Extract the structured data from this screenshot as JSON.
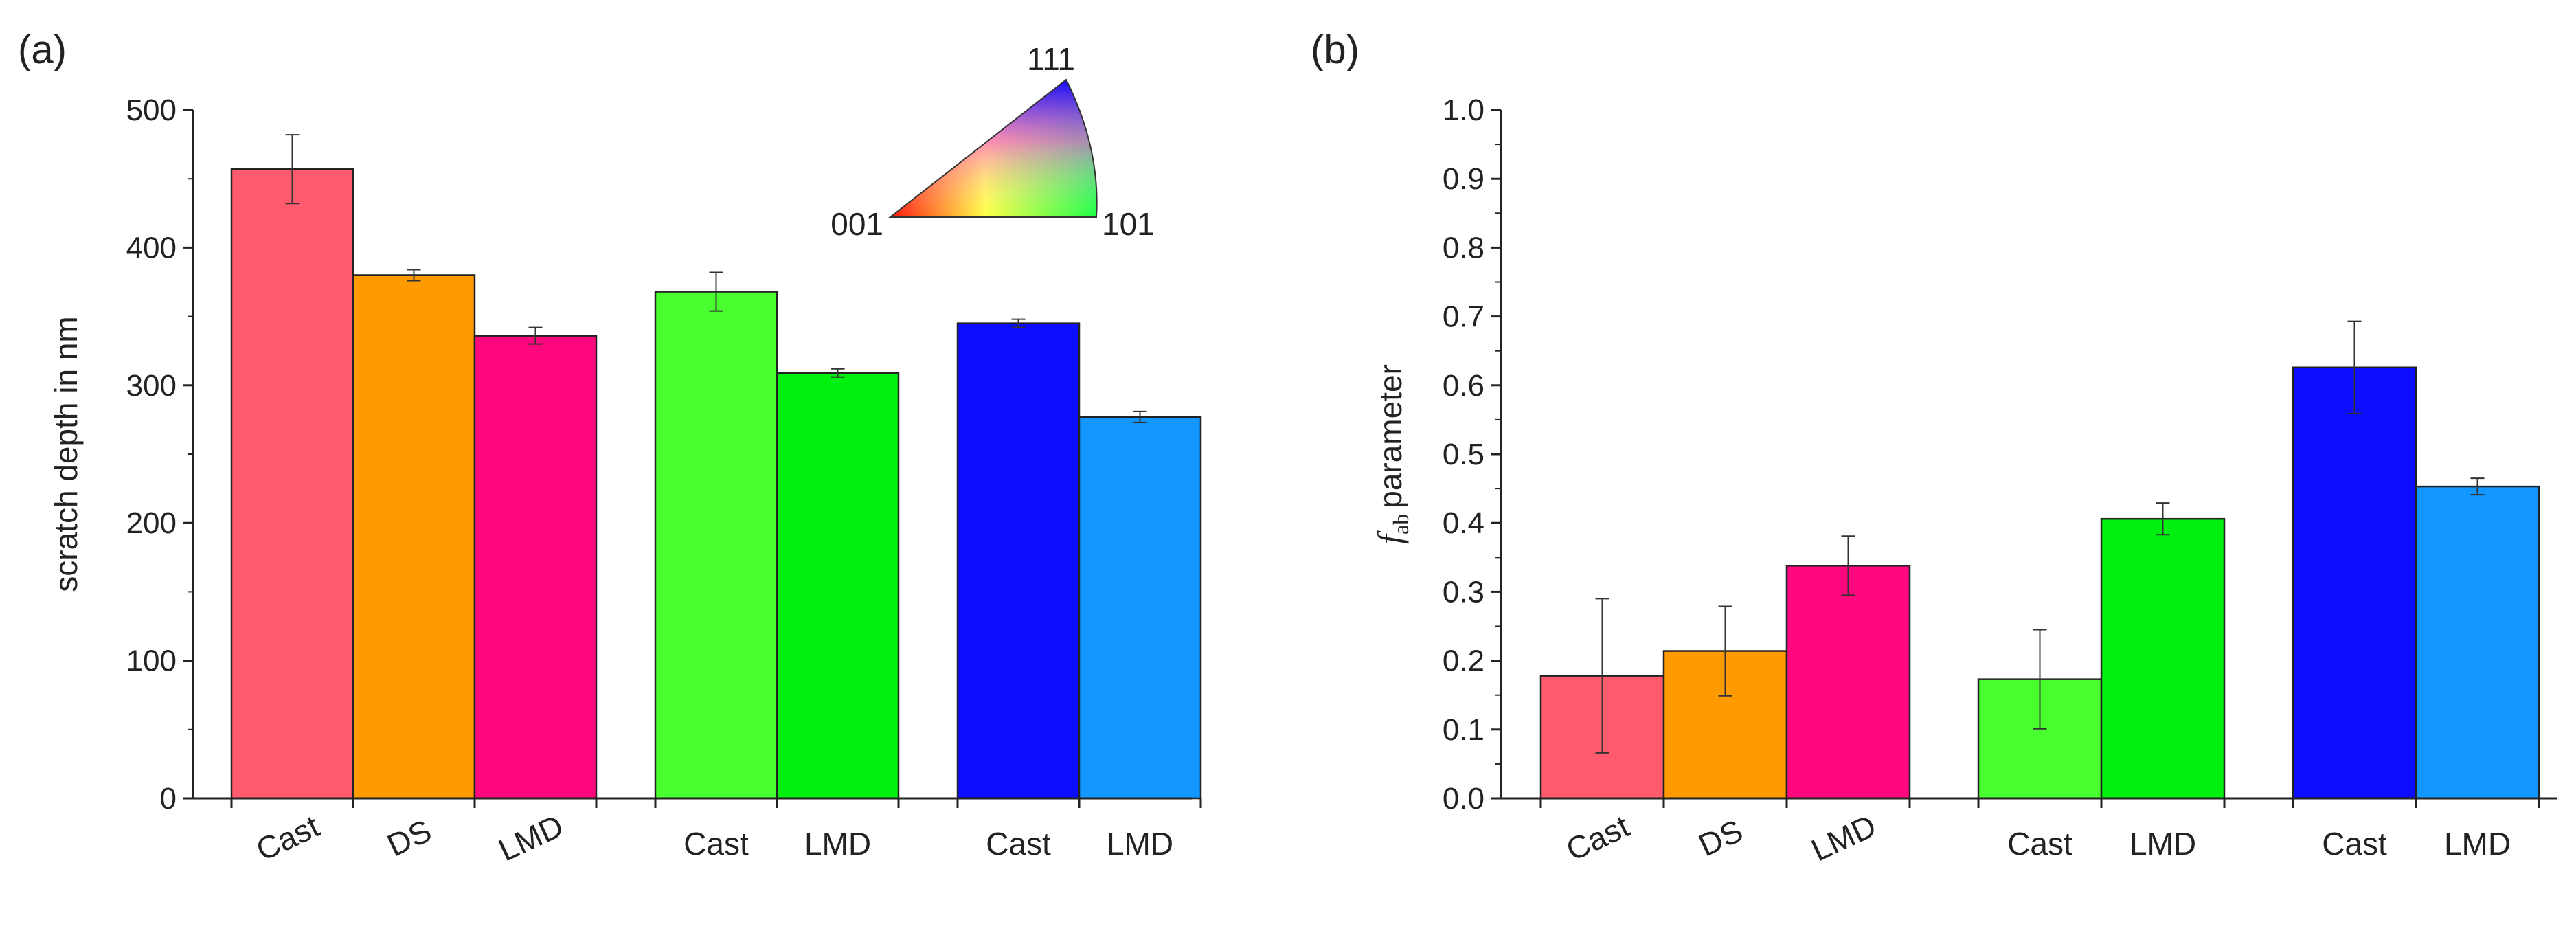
{
  "chart_data": [
    {
      "type": "bar",
      "panel_label": "(a)",
      "ylabel": "scratch depth in nm",
      "ylim": [
        0,
        500
      ],
      "yticks": [
        0,
        100,
        200,
        300,
        400,
        500
      ],
      "groups": [
        {
          "bars": [
            {
              "category": "Cast",
              "value": 457,
              "error": 25,
              "color": "#ff5a6e"
            },
            {
              "category": "DS",
              "value": 380,
              "error": 4,
              "color": "#ff9a00"
            },
            {
              "category": "LMD",
              "value": 336,
              "error": 6,
              "color": "#ff087e"
            }
          ]
        },
        {
          "bars": [
            {
              "category": "Cast",
              "value": 368,
              "error": 14,
              "color": "#49ff2f"
            },
            {
              "category": "LMD",
              "value": 309,
              "error": 3,
              "color": "#00f010"
            }
          ]
        },
        {
          "bars": [
            {
              "category": "Cast",
              "value": 345,
              "error": 3,
              "color": "#0c0cff"
            },
            {
              "category": "LMD",
              "value": 277,
              "error": 4,
              "color": "#1296ff"
            }
          ]
        }
      ],
      "inset_legend": {
        "type": "inverse-pole-figure-triangle",
        "labels": {
          "corner_001": "001",
          "corner_101": "101",
          "corner_111": "111"
        }
      }
    },
    {
      "type": "bar",
      "panel_label": "(b)",
      "ylabel": {
        "symbol": "f",
        "subscript": "ab",
        "text": "parameter"
      },
      "ylim": [
        0,
        1.0
      ],
      "yticks": [
        "0.0",
        "0.1",
        "0.2",
        "0.3",
        "0.4",
        "0.5",
        "0.6",
        "0.7",
        "0.8",
        "0.9",
        "1.0"
      ],
      "groups": [
        {
          "bars": [
            {
              "category": "Cast",
              "value": 0.178,
              "error": 0.112,
              "color": "#ff5a6e"
            },
            {
              "category": "DS",
              "value": 0.214,
              "error": 0.065,
              "color": "#ff9a00"
            },
            {
              "category": "LMD",
              "value": 0.338,
              "error": 0.043,
              "color": "#ff087e"
            }
          ]
        },
        {
          "bars": [
            {
              "category": "Cast",
              "value": 0.173,
              "error": 0.072,
              "color": "#49ff2f"
            },
            {
              "category": "LMD",
              "value": 0.406,
              "error": 0.023,
              "color": "#00f010"
            }
          ]
        },
        {
          "bars": [
            {
              "category": "Cast",
              "value": 0.626,
              "error": 0.067,
              "color": "#0c0cff"
            },
            {
              "category": "LMD",
              "value": 0.453,
              "error": 0.012,
              "color": "#1296ff"
            }
          ]
        }
      ]
    }
  ]
}
